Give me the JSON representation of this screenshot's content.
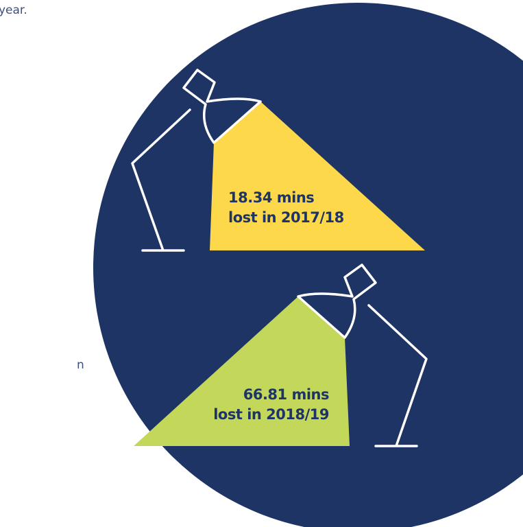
{
  "fragments": {
    "top": "year.",
    "side": "n"
  },
  "lamps": [
    {
      "line1": "18.34 mins",
      "line2": "lost in 2017/18"
    },
    {
      "line1": "66.81 mins",
      "line2": "lost in 2018/19"
    }
  ]
}
